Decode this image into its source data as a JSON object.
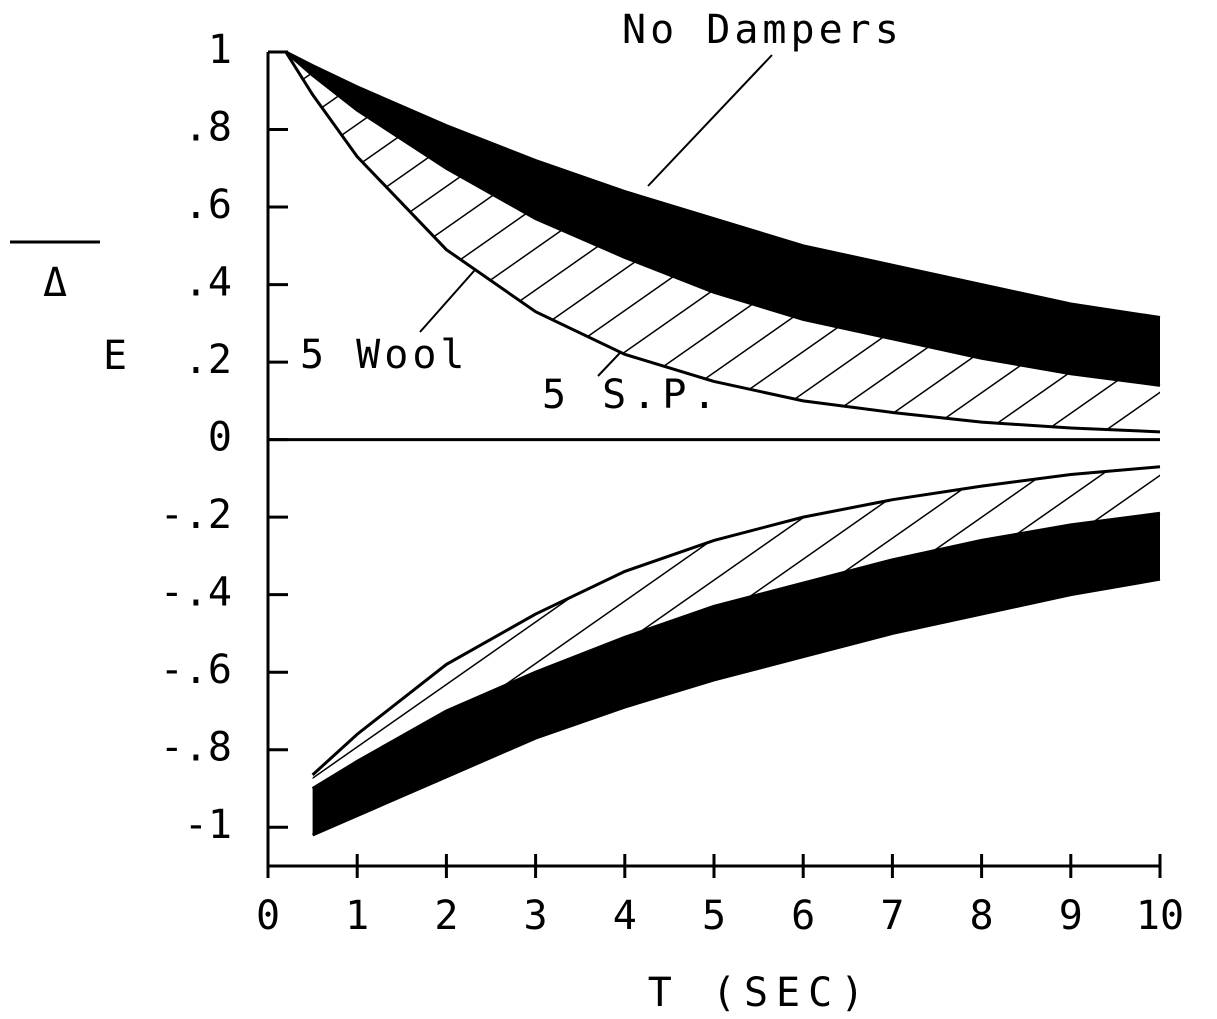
{
  "chart_data": {
    "type": "envelope",
    "x_label": "T (SEC)",
    "y_label": "Δ",
    "y_label_sub": "E",
    "x": [
      0.2,
      0.5,
      1,
      2,
      3,
      4,
      5,
      6,
      7,
      8,
      9,
      10
    ],
    "series": [
      {
        "name": "No Dampers",
        "color": "#000000",
        "band": "solid",
        "values": [
          1,
          0.965,
          0.91,
          0.81,
          0.72,
          0.64,
          0.57,
          0.5,
          0.45,
          0.4,
          0.35,
          0.315
        ],
        "values_lower": [
          null,
          -1.02,
          -0.97,
          -0.87,
          -0.77,
          -0.69,
          -0.62,
          -0.56,
          -0.5,
          -0.45,
          -0.4,
          -0.36
        ]
      },
      {
        "name": "5 Wool",
        "color": "#000000",
        "band": "hatch",
        "values": [
          1,
          0.94,
          0.85,
          0.7,
          0.57,
          0.47,
          0.38,
          0.31,
          0.26,
          0.21,
          0.17,
          0.14
        ],
        "values_lower": [
          null,
          -0.9,
          -0.83,
          -0.7,
          -0.6,
          -0.51,
          -0.43,
          -0.37,
          -0.31,
          -0.26,
          -0.22,
          -0.19
        ]
      },
      {
        "name": "5 S.P.",
        "color": "#000000",
        "values": [
          1,
          0.89,
          0.73,
          0.49,
          0.33,
          0.22,
          0.15,
          0.1,
          0.07,
          0.045,
          0.03,
          0.02
        ],
        "values_lower": [
          null,
          -0.865,
          -0.76,
          -0.58,
          -0.45,
          -0.34,
          -0.26,
          -0.2,
          -0.155,
          -0.12,
          -0.09,
          -0.07
        ]
      }
    ],
    "xlim": [
      0,
      10
    ],
    "xticks": [
      0,
      1,
      2,
      3,
      4,
      5,
      6,
      7,
      8,
      9,
      10
    ],
    "ylim": [
      -1.1,
      1
    ],
    "yticks": [
      1,
      {
        "value": 0.8,
        "label": ".8"
      },
      {
        "value": 0.6,
        "label": ".6"
      },
      {
        "value": 0.4,
        "label": ".4"
      },
      {
        "value": 0.2,
        "label": ".2"
      },
      0,
      {
        "value": -0.2,
        "label": "-.2"
      },
      {
        "value": -0.4,
        "label": "-.4"
      },
      {
        "value": -0.6,
        "label": "-.6"
      },
      {
        "value": -0.8,
        "label": "-.8"
      },
      -1
    ]
  }
}
